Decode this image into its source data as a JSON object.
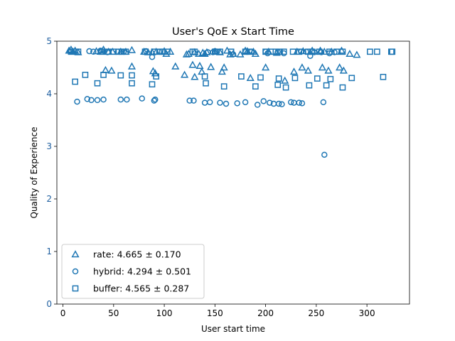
{
  "chart_data": {
    "type": "scatter",
    "title": "User's QoE x Start Time",
    "xlabel": "User start time",
    "ylabel": "Quality of Experience",
    "xlim": [
      -6,
      342
    ],
    "ylim": [
      0,
      5
    ],
    "xticks": [
      0,
      50,
      100,
      150,
      200,
      250,
      300
    ],
    "yticks": [
      0,
      1,
      2,
      3,
      4,
      5
    ],
    "grid": false,
    "legend_position": "lower-left",
    "color": "#1f77b4",
    "ytick_color": "#1f5fa0",
    "series": [
      {
        "name": "rate",
        "legend_label": "rate: 4.665 ± 0.170",
        "marker": "triangle",
        "points": [
          [
            6,
            4.82
          ],
          [
            8,
            4.84
          ],
          [
            10,
            4.8
          ],
          [
            12,
            4.82
          ],
          [
            15,
            4.79
          ],
          [
            33,
            4.81
          ],
          [
            37,
            4.8
          ],
          [
            40,
            4.84
          ],
          [
            42,
            4.45
          ],
          [
            45,
            4.8
          ],
          [
            48,
            4.44
          ],
          [
            49,
            4.8
          ],
          [
            57,
            4.8
          ],
          [
            62,
            4.8
          ],
          [
            68,
            4.83
          ],
          [
            68,
            4.52
          ],
          [
            80,
            4.8
          ],
          [
            84,
            4.79
          ],
          [
            88,
            4.79
          ],
          [
            89,
            4.43
          ],
          [
            91,
            4.39
          ],
          [
            92,
            4.8
          ],
          [
            100,
            4.81
          ],
          [
            102,
            4.76
          ],
          [
            106,
            4.8
          ],
          [
            111,
            4.52
          ],
          [
            120,
            4.36
          ],
          [
            122,
            4.75
          ],
          [
            124,
            4.76
          ],
          [
            128,
            4.55
          ],
          [
            130,
            4.32
          ],
          [
            130,
            4.79
          ],
          [
            134,
            4.76
          ],
          [
            135,
            4.53
          ],
          [
            137,
            4.42
          ],
          [
            138,
            4.78
          ],
          [
            140,
            4.76
          ],
          [
            142,
            4.79
          ],
          [
            146,
            4.51
          ],
          [
            150,
            4.8
          ],
          [
            155,
            4.79
          ],
          [
            157,
            4.42
          ],
          [
            159,
            4.5
          ],
          [
            162,
            4.82
          ],
          [
            165,
            4.75
          ],
          [
            168,
            4.76
          ],
          [
            175,
            4.75
          ],
          [
            180,
            4.82
          ],
          [
            182,
            4.81
          ],
          [
            185,
            4.3
          ],
          [
            188,
            4.8
          ],
          [
            190,
            4.76
          ],
          [
            200,
            4.5
          ],
          [
            203,
            4.8
          ],
          [
            211,
            4.78
          ],
          [
            219,
            4.25
          ],
          [
            228,
            4.42
          ],
          [
            231,
            4.8
          ],
          [
            236,
            4.5
          ],
          [
            237,
            4.81
          ],
          [
            242,
            4.44
          ],
          [
            246,
            4.82
          ],
          [
            254,
            4.82
          ],
          [
            256,
            4.5
          ],
          [
            258,
            4.8
          ],
          [
            262,
            4.44
          ],
          [
            265,
            4.8
          ],
          [
            273,
            4.5
          ],
          [
            275,
            4.82
          ],
          [
            277,
            4.44
          ],
          [
            283,
            4.76
          ],
          [
            290,
            4.74
          ]
        ]
      },
      {
        "name": "hybrid",
        "legend_label": "hybrid: 4.294 ± 0.501",
        "marker": "circle",
        "points": [
          [
            7,
            4.8
          ],
          [
            14,
            3.85
          ],
          [
            24,
            3.9
          ],
          [
            26,
            4.81
          ],
          [
            28,
            3.88
          ],
          [
            30,
            4.8
          ],
          [
            34,
            3.88
          ],
          [
            37,
            4.82
          ],
          [
            40,
            3.89
          ],
          [
            44,
            4.79
          ],
          [
            54,
            4.8
          ],
          [
            57,
            3.89
          ],
          [
            60,
            4.8
          ],
          [
            63,
            3.89
          ],
          [
            78,
            3.91
          ],
          [
            82,
            4.81
          ],
          [
            88,
            4.7
          ],
          [
            90,
            3.87
          ],
          [
            91,
            3.89
          ],
          [
            95,
            4.8
          ],
          [
            125,
            3.87
          ],
          [
            129,
            3.87
          ],
          [
            140,
            3.83
          ],
          [
            143,
            4.79
          ],
          [
            145,
            3.84
          ],
          [
            148,
            4.79
          ],
          [
            150,
            4.81
          ],
          [
            152,
            4.8
          ],
          [
            155,
            3.83
          ],
          [
            161,
            3.81
          ],
          [
            168,
            4.75
          ],
          [
            172,
            3.82
          ],
          [
            180,
            3.84
          ],
          [
            186,
            4.8
          ],
          [
            192,
            3.79
          ],
          [
            198,
            3.86
          ],
          [
            200,
            4.8
          ],
          [
            202,
            4.77
          ],
          [
            204,
            3.83
          ],
          [
            208,
            3.81
          ],
          [
            212,
            4.8
          ],
          [
            213,
            3.81
          ],
          [
            216,
            3.8
          ],
          [
            218,
            4.77
          ],
          [
            225,
            3.84
          ],
          [
            228,
            3.83
          ],
          [
            233,
            3.83
          ],
          [
            235,
            4.8
          ],
          [
            236,
            3.82
          ],
          [
            240,
            4.8
          ],
          [
            244,
            4.72
          ],
          [
            248,
            4.79
          ],
          [
            255,
            4.79
          ],
          [
            257,
            3.84
          ],
          [
            258,
            2.84
          ],
          [
            263,
            4.77
          ],
          [
            268,
            4.79
          ]
        ]
      },
      {
        "name": "buffer",
        "legend_label": "buffer: 4.565 ± 0.287",
        "marker": "square",
        "points": [
          [
            8,
            4.8
          ],
          [
            12,
            4.23
          ],
          [
            15,
            4.8
          ],
          [
            22,
            4.36
          ],
          [
            34,
            4.2
          ],
          [
            38,
            4.8
          ],
          [
            40,
            4.36
          ],
          [
            44,
            4.8
          ],
          [
            50,
            4.8
          ],
          [
            55,
            4.8
          ],
          [
            57,
            4.35
          ],
          [
            58,
            4.8
          ],
          [
            62,
            4.8
          ],
          [
            68,
            4.35
          ],
          [
            68,
            4.2
          ],
          [
            81,
            4.8
          ],
          [
            88,
            4.18
          ],
          [
            90,
            4.8
          ],
          [
            92,
            4.33
          ],
          [
            96,
            4.8
          ],
          [
            98,
            4.8
          ],
          [
            103,
            4.8
          ],
          [
            128,
            4.8
          ],
          [
            130,
            4.8
          ],
          [
            140,
            4.33
          ],
          [
            141,
            4.2
          ],
          [
            150,
            4.8
          ],
          [
            155,
            4.8
          ],
          [
            159,
            4.14
          ],
          [
            166,
            4.8
          ],
          [
            176,
            4.33
          ],
          [
            180,
            4.8
          ],
          [
            184,
            4.8
          ],
          [
            190,
            4.14
          ],
          [
            195,
            4.31
          ],
          [
            200,
            4.8
          ],
          [
            205,
            4.8
          ],
          [
            210,
            4.8
          ],
          [
            212,
            4.17
          ],
          [
            213,
            4.29
          ],
          [
            214,
            4.8
          ],
          [
            218,
            4.8
          ],
          [
            220,
            4.12
          ],
          [
            227,
            4.8
          ],
          [
            229,
            4.3
          ],
          [
            233,
            4.8
          ],
          [
            242,
            4.8
          ],
          [
            243,
            4.16
          ],
          [
            246,
            4.8
          ],
          [
            251,
            4.29
          ],
          [
            253,
            4.8
          ],
          [
            260,
            4.16
          ],
          [
            263,
            4.8
          ],
          [
            264,
            4.28
          ],
          [
            270,
            4.8
          ],
          [
            276,
            4.8
          ],
          [
            276,
            4.12
          ],
          [
            285,
            4.3
          ],
          [
            303,
            4.8
          ],
          [
            310,
            4.8
          ],
          [
            316,
            4.32
          ],
          [
            324,
            4.8
          ],
          [
            325,
            4.8
          ]
        ]
      }
    ]
  }
}
